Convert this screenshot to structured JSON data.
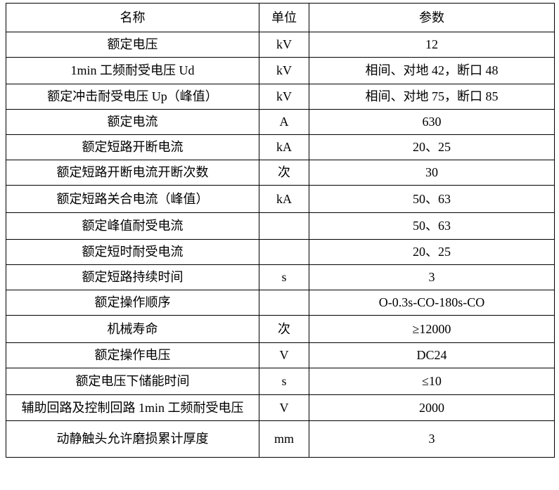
{
  "table": {
    "columns": [
      "名称",
      "单位",
      "参数"
    ],
    "rows": [
      {
        "name": "额定电压",
        "unit": "kV",
        "value": "12"
      },
      {
        "name": "1min 工频耐受电压 Ud",
        "unit": "kV",
        "value": "相间、对地 42，断口 48"
      },
      {
        "name": "额定冲击耐受电压 Up（峰值）",
        "unit": "kV",
        "value": "相间、对地 75，断口 85"
      },
      {
        "name": "额定电流",
        "unit": "A",
        "value": "630"
      },
      {
        "name": "额定短路开断电流",
        "unit": "kA",
        "value": "20、25"
      },
      {
        "name": "额定短路开断电流开断次数",
        "unit": "次",
        "value": "30"
      },
      {
        "name": "额定短路关合电流（峰值）",
        "unit": "kA",
        "value": "50、63"
      },
      {
        "name": "额定峰值耐受电流",
        "unit": "",
        "value": "50、63"
      },
      {
        "name": "额定短时耐受电流",
        "unit": "",
        "value": "20、25"
      },
      {
        "name": "额定短路持续时间",
        "unit": "s",
        "value": "3"
      },
      {
        "name": "额定操作顺序",
        "unit": "",
        "value": "O-0.3s-CO-180s-CO"
      },
      {
        "name": "机械寿命",
        "unit": "次",
        "value": "≥12000"
      },
      {
        "name": "额定操作电压",
        "unit": "V",
        "value": "DC24"
      },
      {
        "name": "额定电压下储能时间",
        "unit": "s",
        "value": "≤10"
      },
      {
        "name": "辅助回路及控制回路 1min 工频耐受电压",
        "unit": "V",
        "value": "2000"
      },
      {
        "name": "动静触头允许磨损累计厚度",
        "unit": "mm",
        "value": "3"
      }
    ]
  },
  "colors": {
    "border": "#000000",
    "text": "#000000",
    "background": "#ffffff"
  }
}
